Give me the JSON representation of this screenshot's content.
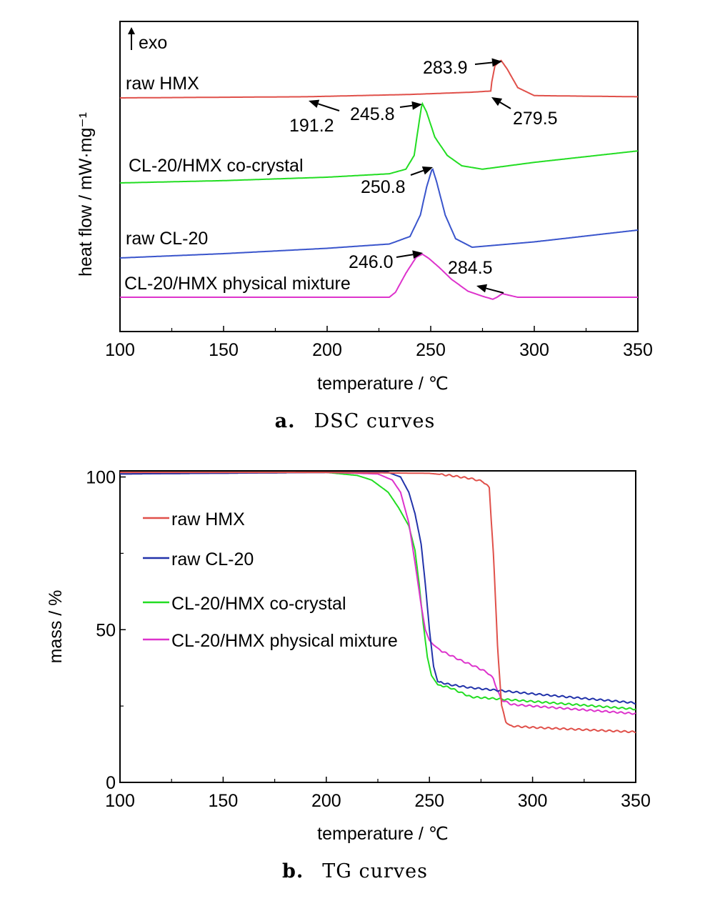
{
  "chart_data": [
    {
      "type": "line",
      "panel_label": "a.",
      "caption": "DSC curves",
      "xlabel": "temperature / ℃",
      "ylabel": "heat flow / mW·mg⁻¹",
      "exo_label": "exo",
      "xlim": [
        100,
        350
      ],
      "xticks": [
        100,
        150,
        200,
        250,
        300,
        350
      ],
      "y_values_note": "",
      "series": [
        {
          "label": "raw HMX",
          "color": "#e0504a",
          "x": [
            100,
            190,
            240,
            270,
            279,
            279.5,
            281,
            283.9,
            287,
            292,
            300,
            350
          ],
          "y": [
            0.0,
            0.05,
            0.15,
            0.25,
            0.3,
            0.7,
            1.4,
            1.65,
            1.25,
            0.45,
            0.1,
            0.05
          ]
        },
        {
          "label": "CL-20/HMX co-crystal",
          "color": "#22dd22",
          "x": [
            100,
            150,
            200,
            230,
            238,
            242,
            245.8,
            248,
            252,
            258,
            265,
            275,
            300,
            350
          ],
          "y": [
            0.0,
            0.1,
            0.25,
            0.4,
            0.6,
            1.2,
            3.5,
            3.1,
            2.0,
            1.2,
            0.75,
            0.6,
            0.9,
            1.4
          ]
        },
        {
          "label": "raw CL-20",
          "color": "#3a55cc",
          "x": [
            100,
            150,
            200,
            230,
            240,
            245,
            248,
            250.8,
            253,
            257,
            262,
            270,
            300,
            350
          ],
          "y": [
            0.0,
            0.2,
            0.45,
            0.65,
            1.0,
            2.0,
            3.3,
            4.2,
            3.5,
            2.0,
            0.9,
            0.5,
            0.75,
            1.3
          ]
        },
        {
          "label": "CL-20/HMX physical mixture",
          "color": "#dd33cc",
          "x": [
            100,
            230,
            233,
            238,
            243,
            246.0,
            249,
            254,
            260,
            268,
            275,
            280,
            282,
            284.5,
            287,
            292,
            350
          ],
          "y": [
            0.0,
            0.0,
            0.25,
            1.2,
            2.0,
            2.15,
            1.95,
            1.5,
            0.9,
            0.3,
            0.05,
            -0.1,
            0.0,
            0.18,
            0.12,
            0.0,
            0.0
          ]
        }
      ],
      "annotations": [
        {
          "text": "283.9",
          "x": 283.9,
          "series": 0
        },
        {
          "text": "279.5",
          "x": 279.5,
          "series": 0
        },
        {
          "text": "191.2",
          "x": 191.2,
          "series": 0
        },
        {
          "text": "245.8",
          "x": 245.8,
          "series": 1
        },
        {
          "text": "250.8",
          "x": 250.8,
          "series": 2
        },
        {
          "text": "246.0",
          "x": 246.0,
          "series": 3
        },
        {
          "text": "284.5",
          "x": 284.5,
          "series": 3
        }
      ]
    },
    {
      "type": "line",
      "panel_label": "b.",
      "caption": "TG curves",
      "xlabel": "temperature / ℃",
      "ylabel": "mass / %",
      "xlim": [
        100,
        350
      ],
      "ylim": [
        0,
        102
      ],
      "xticks": [
        100,
        150,
        200,
        250,
        300,
        350
      ],
      "yticks": [
        0,
        50,
        100
      ],
      "legend_position": "upper-left",
      "series": [
        {
          "name": "raw HMX",
          "color": "#e0504a",
          "x": [
            100,
            200,
            250,
            260,
            270,
            276,
            279,
            281,
            283,
            285,
            287,
            289,
            300,
            350
          ],
          "y": [
            101.5,
            101.5,
            101.2,
            100.5,
            99.5,
            98.5,
            96.5,
            75,
            45,
            25,
            20,
            18.5,
            18,
            16.5
          ]
        },
        {
          "name": "raw CL-20",
          "color": "#2233aa",
          "x": [
            100,
            200,
            230,
            236,
            240,
            243,
            246,
            248,
            250,
            252,
            254,
            260,
            270,
            300,
            350
          ],
          "y": [
            101,
            101.5,
            101.5,
            100,
            95,
            88,
            78,
            65,
            50,
            38,
            33,
            32,
            31,
            29,
            26
          ]
        },
        {
          "name": "CL-20/HMX co-crystal",
          "color": "#22dd22",
          "x": [
            100,
            200,
            215,
            222,
            230,
            235,
            240,
            243,
            245,
            247,
            249,
            251,
            254,
            260,
            270,
            300,
            350
          ],
          "y": [
            101,
            101.5,
            100.5,
            99,
            95,
            90,
            84,
            76,
            65,
            52,
            41,
            35,
            32,
            31,
            28,
            26.5,
            24
          ]
        },
        {
          "name": "CL-20/HMX physical mixture",
          "color": "#dd33cc",
          "x": [
            100,
            200,
            225,
            232,
            236,
            240,
            243,
            246,
            248,
            250,
            252,
            256,
            265,
            272,
            278,
            281,
            283,
            285,
            290,
            300,
            350
          ],
          "y": [
            101,
            101.5,
            101,
            99,
            95,
            85,
            72,
            58,
            50,
            46.5,
            45,
            43,
            40,
            38,
            36,
            34,
            30,
            27,
            25.5,
            25,
            22.5
          ]
        }
      ]
    }
  ]
}
